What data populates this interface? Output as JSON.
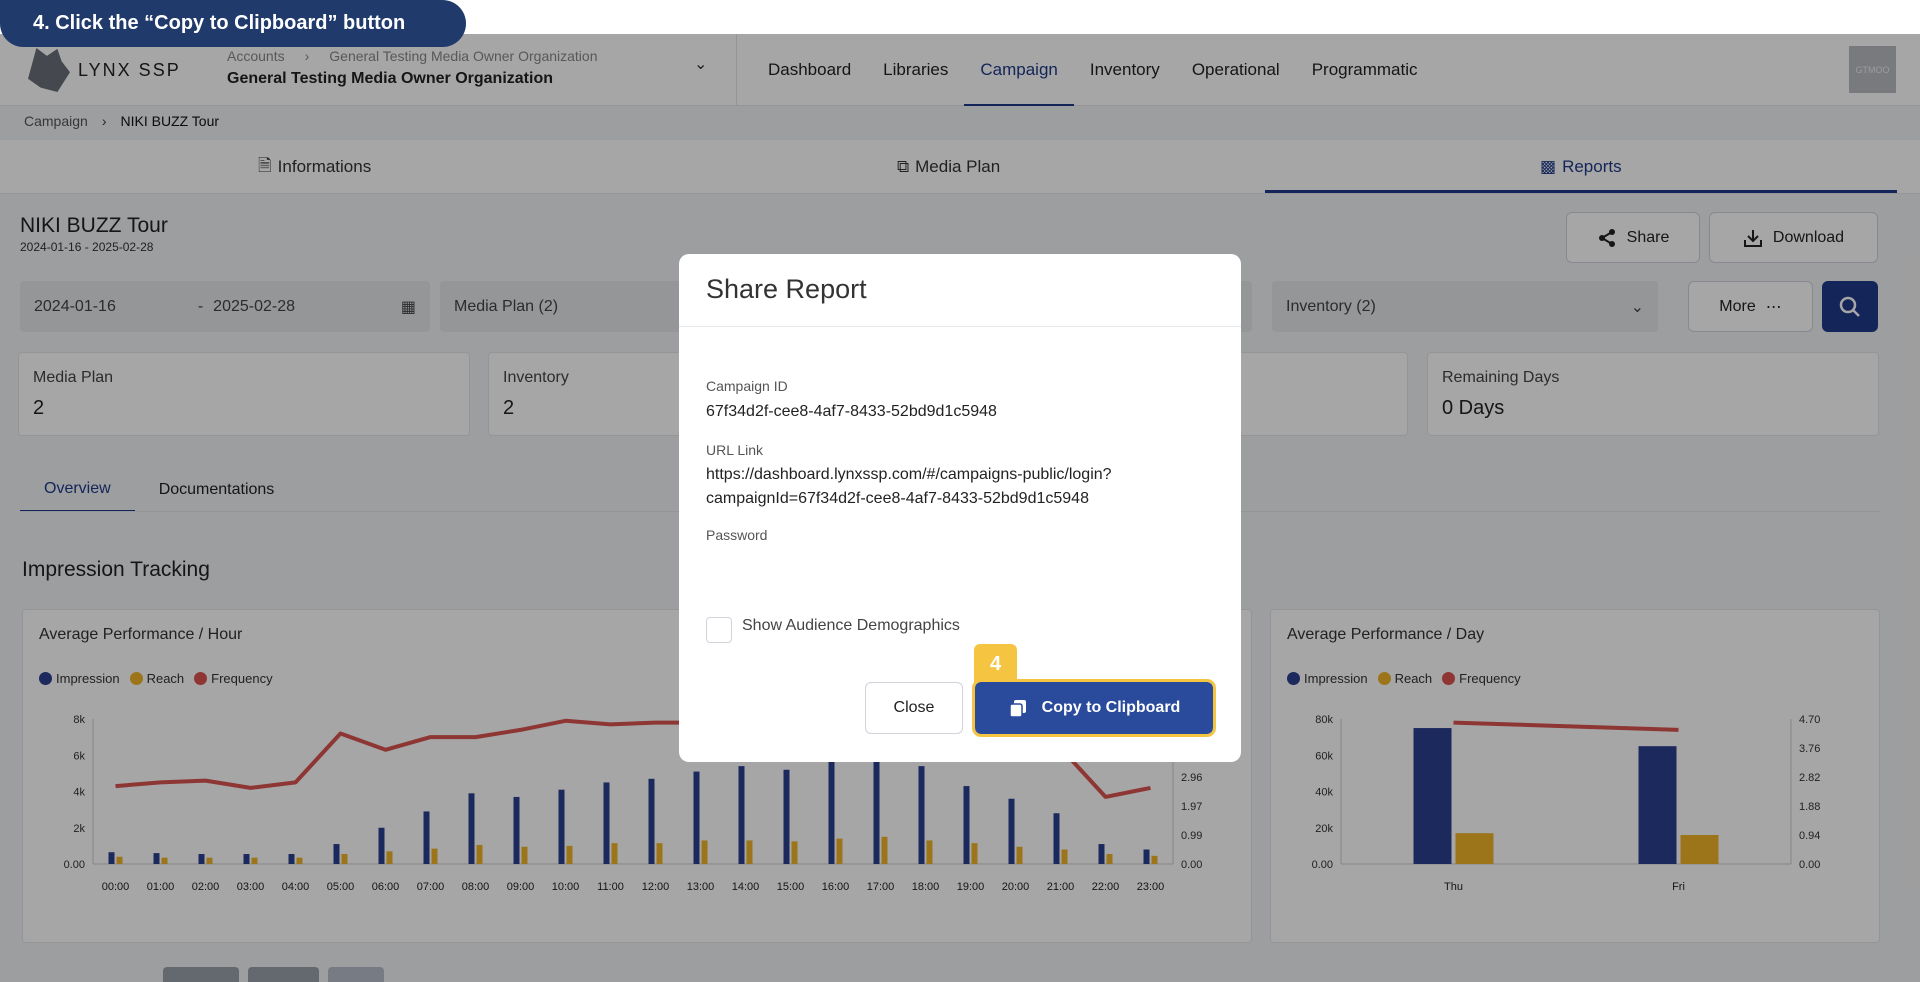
{
  "step": {
    "label": "4. Click the “Copy to Clipboard” button",
    "badge": "4"
  },
  "brand": {
    "name": "LYNX SSP"
  },
  "org": {
    "crumb_root": "Accounts",
    "crumb_org": "General Testing Media Owner Organization",
    "name": "General Testing Media Owner Organization"
  },
  "nav": {
    "items": [
      "Dashboard",
      "Libraries",
      "Campaign",
      "Inventory",
      "Operational",
      "Programmatic"
    ],
    "active": "Campaign"
  },
  "user": {
    "avatar": "GTMOO"
  },
  "breadcrumb": {
    "root": "Campaign",
    "current": "NIKI BUZZ Tour"
  },
  "tabs": {
    "informations": "Informations",
    "media_plan": "Media Plan",
    "reports": "Reports"
  },
  "campaign": {
    "title": "NIKI BUZZ Tour",
    "dates": "2024-01-16 - 2025-02-28"
  },
  "actions": {
    "share": "Share",
    "download": "Download",
    "more": "More"
  },
  "filters": {
    "start": "2024-01-16",
    "dash": "-",
    "end": "2025-02-28",
    "media_plan": "Media Plan (2)",
    "inventory": "Inventory (2)"
  },
  "stats": {
    "media_plan_label": "Media Plan",
    "media_plan_value": "2",
    "inventory_label": "Inventory",
    "inventory_value": "2",
    "remaining_label": "Remaining Days",
    "remaining_value": "0 Days"
  },
  "subtabs": {
    "overview": "Overview",
    "documentations": "Documentations"
  },
  "section": {
    "title": "Impression Tracking"
  },
  "colors": {
    "impression": "#2b3f8f",
    "reach": "#f0b429",
    "frequency": "#d9534f"
  },
  "chart_data": [
    {
      "type": "bar",
      "title": "Average Performance / Hour",
      "legend": [
        "Impression",
        "Reach",
        "Frequency"
      ],
      "categories": [
        "00:00",
        "01:00",
        "02:00",
        "03:00",
        "04:00",
        "05:00",
        "06:00",
        "07:00",
        "08:00",
        "09:00",
        "10:00",
        "11:00",
        "12:00",
        "13:00",
        "14:00",
        "15:00",
        "16:00",
        "17:00",
        "18:00",
        "19:00",
        "20:00",
        "21:00",
        "22:00",
        "23:00"
      ],
      "yticks_left": [
        "0.00",
        "2k",
        "4k",
        "6k",
        "8k"
      ],
      "yticks_right": [
        "0.00",
        "0.99",
        "1.97",
        "2.96"
      ],
      "ylim": [
        0,
        8000
      ],
      "series": [
        {
          "name": "Impression",
          "values": [
            650,
            600,
            550,
            550,
            550,
            1100,
            2000,
            2900,
            3900,
            3700,
            4100,
            4500,
            4700,
            5100,
            5400,
            5200,
            5700,
            5700,
            5400,
            4300,
            3600,
            2800,
            1100,
            800
          ]
        },
        {
          "name": "Reach",
          "values": [
            400,
            350,
            350,
            350,
            350,
            550,
            700,
            850,
            1050,
            950,
            1000,
            1150,
            1150,
            1300,
            1300,
            1250,
            1400,
            1500,
            1300,
            1150,
            950,
            800,
            550,
            450
          ]
        },
        {
          "name": "Frequency",
          "values": [
            4300,
            4500,
            4600,
            4200,
            4500,
            7200,
            6300,
            7000,
            7000,
            7400,
            7900,
            7700,
            7800,
            7800,
            7600,
            7500,
            7500,
            7500,
            7400,
            7300,
            7000,
            6400,
            3700,
            4200
          ]
        }
      ]
    },
    {
      "type": "bar",
      "title": "Average Performance / Day",
      "legend": [
        "Impression",
        "Reach",
        "Frequency"
      ],
      "categories": [
        "Thu",
        "Fri"
      ],
      "yticks_left": [
        "0.00",
        "20k",
        "40k",
        "60k",
        "80k"
      ],
      "yticks_right": [
        "0.00",
        "0.94",
        "1.88",
        "2.82",
        "3.76",
        "4.70"
      ],
      "ylim": [
        0,
        80000
      ],
      "series": [
        {
          "name": "Impression",
          "values": [
            75000,
            65000
          ]
        },
        {
          "name": "Reach",
          "values": [
            17000,
            16000
          ]
        },
        {
          "name": "Frequency",
          "values": [
            78000,
            74000
          ]
        }
      ]
    }
  ],
  "modal": {
    "title": "Share Report",
    "campaign_id_label": "Campaign ID",
    "campaign_id": "67f34d2f-cee8-4af7-8433-52bd9d1c5948",
    "url_label": "URL Link",
    "url_line1": "https://dashboard.lynxssp.com/#/campaigns-public/login?",
    "url_line2": "campaignId=67f34d2f-cee8-4af7-8433-52bd9d1c5948",
    "password_label": "Password",
    "show_demographics": "Show Audience Demographics",
    "close": "Close",
    "copy": "Copy to Clipboard"
  }
}
